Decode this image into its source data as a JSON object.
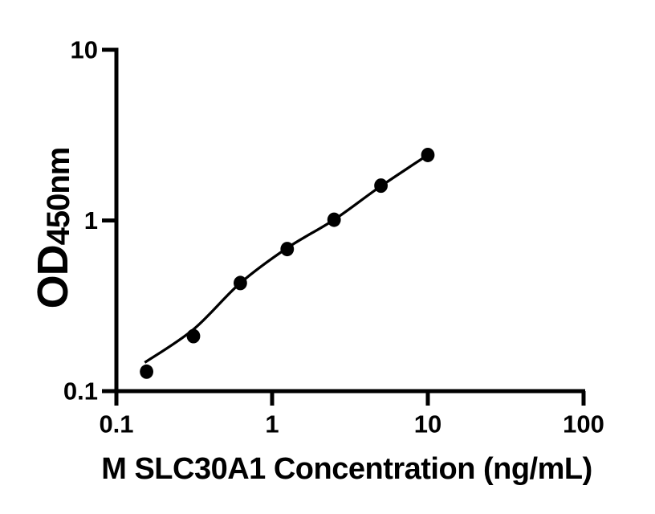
{
  "figure": {
    "background": "#ffffff",
    "foreground": "#000000"
  },
  "chart_data": {
    "type": "scatter",
    "title": "",
    "xlabel": "M SLC30A1 Concentration (ng/mL)",
    "ylabel_main": "OD",
    "ylabel_sub": "450nm",
    "x_scale": "log",
    "y_scale": "log",
    "xlim": [
      0.1,
      100
    ],
    "ylim": [
      0.1,
      10
    ],
    "x_ticks": [
      {
        "value": 0.1,
        "label": "0.1"
      },
      {
        "value": 1,
        "label": "1"
      },
      {
        "value": 10,
        "label": "10"
      },
      {
        "value": 100,
        "label": "100"
      }
    ],
    "y_ticks": [
      {
        "value": 0.1,
        "label": "0.1"
      },
      {
        "value": 1,
        "label": "1"
      },
      {
        "value": 10,
        "label": "10"
      }
    ],
    "grid": false,
    "legend": null,
    "marker_color": "#000000",
    "line_color": "#000000",
    "series": [
      {
        "name": "standard-curve-points",
        "marker": "filled-circle",
        "points": [
          {
            "x": 0.15625,
            "y": 0.13
          },
          {
            "x": 0.3125,
            "y": 0.21
          },
          {
            "x": 0.625,
            "y": 0.43
          },
          {
            "x": 1.25,
            "y": 0.68
          },
          {
            "x": 2.5,
            "y": 1.01
          },
          {
            "x": 5,
            "y": 1.6
          },
          {
            "x": 10,
            "y": 2.42
          }
        ]
      }
    ],
    "fit_curve": {
      "points": [
        {
          "x": 0.152,
          "y": 0.147
        },
        {
          "x": 0.3125,
          "y": 0.23
        },
        {
          "x": 0.625,
          "y": 0.43
        },
        {
          "x": 1.25,
          "y": 0.69
        },
        {
          "x": 2.5,
          "y": 1.01
        },
        {
          "x": 5,
          "y": 1.59
        },
        {
          "x": 10,
          "y": 2.42
        }
      ]
    }
  }
}
